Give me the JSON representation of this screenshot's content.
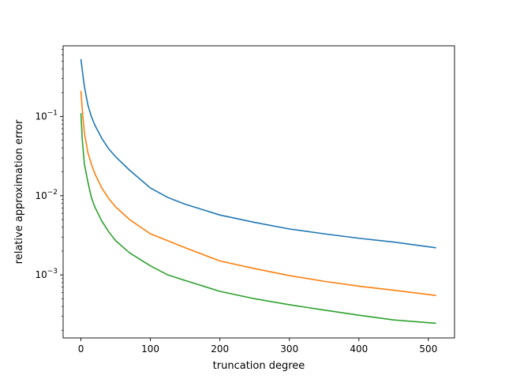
{
  "chart_data": {
    "type": "line",
    "title": "",
    "xlabel": "truncation degree",
    "ylabel": "relative approximation error",
    "xscale": "linear",
    "yscale": "log",
    "xlim": [
      -25.6,
      537.6
    ],
    "ylim": [
      0.00016,
      0.78
    ],
    "grid": false,
    "legend": "none",
    "x_ticks": [
      0,
      100,
      200,
      300,
      400,
      500
    ],
    "x_tick_labels": [
      "0",
      "100",
      "200",
      "300",
      "400",
      "500"
    ],
    "y_major_ticks": [
      0.001,
      0.01,
      0.1
    ],
    "y_tick_base": "10",
    "y_tick_exponents": [
      "−3",
      "−2",
      "−1"
    ],
    "series": [
      {
        "color": "#1f77b4",
        "points": [
          [
            0,
            0.53
          ],
          [
            2,
            0.38
          ],
          [
            5,
            0.24
          ],
          [
            10,
            0.14
          ],
          [
            15,
            0.1
          ],
          [
            20,
            0.078
          ],
          [
            30,
            0.053
          ],
          [
            40,
            0.039
          ],
          [
            50,
            0.031
          ],
          [
            70,
            0.021
          ],
          [
            100,
            0.0125
          ],
          [
            125,
            0.0095
          ],
          [
            150,
            0.0078
          ],
          [
            200,
            0.0057
          ],
          [
            250,
            0.0046
          ],
          [
            300,
            0.0038
          ],
          [
            350,
            0.0033
          ],
          [
            400,
            0.0029
          ],
          [
            450,
            0.0026
          ],
          [
            511,
            0.0022
          ]
        ]
      },
      {
        "color": "#ff7f0e",
        "points": [
          [
            0,
            0.21
          ],
          [
            2,
            0.12
          ],
          [
            5,
            0.062
          ],
          [
            10,
            0.035
          ],
          [
            15,
            0.025
          ],
          [
            20,
            0.019
          ],
          [
            30,
            0.0125
          ],
          [
            40,
            0.0092
          ],
          [
            50,
            0.0072
          ],
          [
            70,
            0.005
          ],
          [
            100,
            0.0033
          ],
          [
            125,
            0.0027
          ],
          [
            150,
            0.0022
          ],
          [
            200,
            0.0015
          ],
          [
            250,
            0.0012
          ],
          [
            300,
            0.00098
          ],
          [
            350,
            0.00083
          ],
          [
            400,
            0.00072
          ],
          [
            450,
            0.00064
          ],
          [
            511,
            0.00055
          ]
        ]
      },
      {
        "color": "#2ca02c",
        "points": [
          [
            0,
            0.11
          ],
          [
            2,
            0.05
          ],
          [
            5,
            0.025
          ],
          [
            10,
            0.015
          ],
          [
            15,
            0.0095
          ],
          [
            20,
            0.0072
          ],
          [
            30,
            0.0048
          ],
          [
            40,
            0.0035
          ],
          [
            50,
            0.0027
          ],
          [
            70,
            0.0019
          ],
          [
            100,
            0.0013
          ],
          [
            125,
            0.001
          ],
          [
            150,
            0.00085
          ],
          [
            200,
            0.00062
          ],
          [
            250,
            0.0005
          ],
          [
            300,
            0.00042
          ],
          [
            350,
            0.00036
          ],
          [
            400,
            0.00031
          ],
          [
            450,
            0.00027
          ],
          [
            511,
            0.000245
          ]
        ]
      }
    ]
  }
}
